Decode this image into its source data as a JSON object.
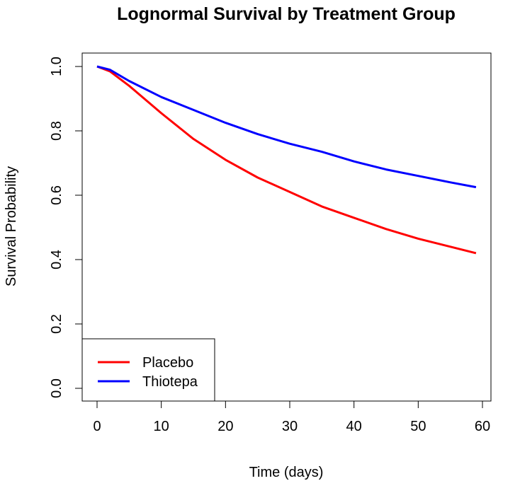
{
  "chart_data": {
    "type": "line",
    "title": "Lognormal Survival by Treatment Group",
    "xlabel": "Time (days)",
    "ylabel": "Survival Probability",
    "xlim": [
      0,
      60
    ],
    "ylim": [
      0,
      1
    ],
    "x_ticks": [
      "0",
      "10",
      "20",
      "30",
      "40",
      "50",
      "60"
    ],
    "y_ticks": [
      "0.0",
      "0.2",
      "0.4",
      "0.6",
      "0.8",
      "1.0"
    ],
    "grid": false,
    "legend": {
      "position": "bottom-left",
      "entries": [
        "Placebo",
        "Thiotepa"
      ]
    },
    "series": [
      {
        "name": "Placebo",
        "color": "#ff0000",
        "x": [
          0,
          2,
          5,
          10,
          15,
          20,
          25,
          30,
          35,
          40,
          45,
          50,
          55,
          59
        ],
        "y": [
          1.0,
          0.985,
          0.94,
          0.855,
          0.775,
          0.71,
          0.655,
          0.61,
          0.565,
          0.53,
          0.495,
          0.465,
          0.44,
          0.42
        ]
      },
      {
        "name": "Thiotepa",
        "color": "#0000ff",
        "x": [
          0,
          2,
          5,
          10,
          15,
          20,
          25,
          30,
          35,
          40,
          45,
          50,
          55,
          59
        ],
        "y": [
          1.0,
          0.99,
          0.955,
          0.905,
          0.865,
          0.825,
          0.79,
          0.76,
          0.735,
          0.705,
          0.68,
          0.66,
          0.64,
          0.625
        ]
      }
    ]
  }
}
